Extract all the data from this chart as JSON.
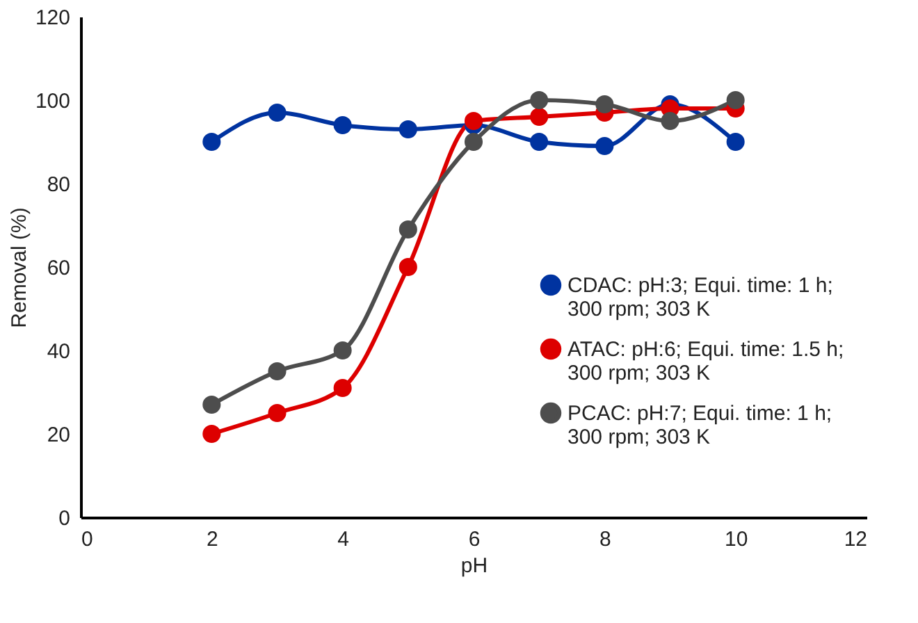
{
  "chart_data": {
    "type": "line",
    "xlabel": "pH",
    "ylabel": "Removal (%)",
    "x": [
      2,
      3,
      4,
      5,
      6,
      7,
      8,
      9,
      10
    ],
    "xlim": [
      0,
      12
    ],
    "xticks": [
      0,
      2,
      4,
      6,
      8,
      10,
      12
    ],
    "ylim": [
      0,
      120
    ],
    "yticks": [
      0,
      20,
      40,
      60,
      80,
      100,
      120
    ],
    "grid": false,
    "legend": "right",
    "marker": "circle",
    "line_style": "solid",
    "series": [
      {
        "name": "CDAC: pH:3; Equi. time: 1 h; 300 rpm; 303 K",
        "color": "#0033a0",
        "values": [
          90,
          97,
          94,
          93,
          94,
          90,
          89,
          99,
          90
        ]
      },
      {
        "name": "ATAC: pH:6; Equi. time: 1.5 h; 300 rpm; 303 K",
        "color": "#dd0000",
        "values": [
          20,
          25,
          31,
          60,
          95,
          96,
          97,
          98,
          98
        ]
      },
      {
        "name": "PCAC: pH:7; Equi. time: 1 h; 300 rpm; 303 K",
        "color": "#4d4d4d",
        "values": [
          27,
          35,
          40,
          69,
          90,
          100,
          99,
          95,
          100
        ]
      }
    ]
  }
}
